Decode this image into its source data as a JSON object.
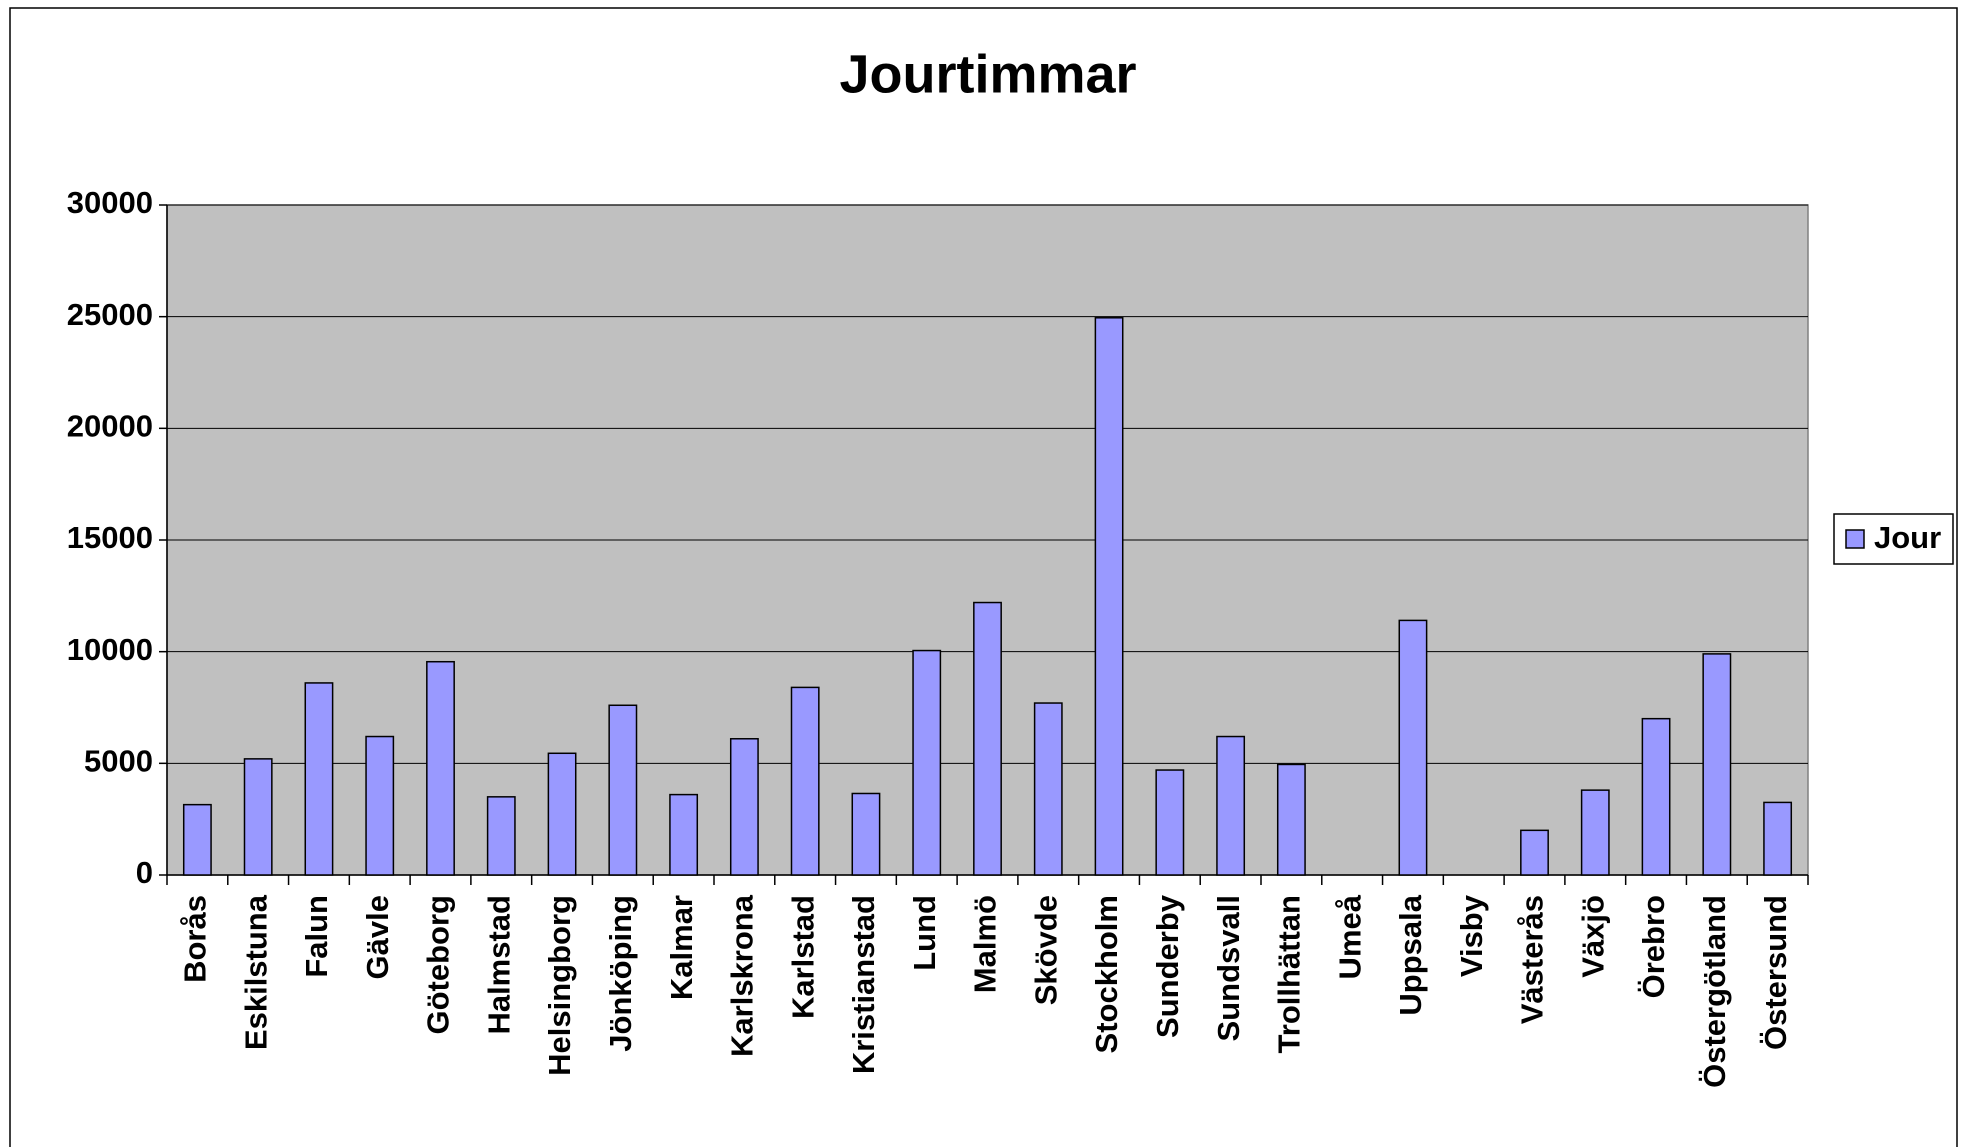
{
  "chart_data": {
    "type": "bar",
    "title": "Jourtimmar",
    "categories": [
      "Borås",
      "Eskilstuna",
      "Falun",
      "Gävle",
      "Göteborg",
      "Halmstad",
      "Helsingborg",
      "Jönköping",
      "Kalmar",
      "Karlskrona",
      "Karlstad",
      "Kristianstad",
      "Lund",
      "Malmö",
      "Skövde",
      "Stockholm",
      "Sunderby",
      "Sundsvall",
      "Trollhättan",
      "Umeå",
      "Uppsala",
      "Visby",
      "Västerås",
      "Växjö",
      "Örebro",
      "Östergötland",
      "Östersund"
    ],
    "series": [
      {
        "name": "Jour",
        "color": "#9999ff",
        "values": [
          3150,
          5200,
          8600,
          6200,
          9550,
          3500,
          5450,
          7600,
          3600,
          6100,
          8400,
          3650,
          10050,
          12200,
          7700,
          24950,
          4700,
          6200,
          4950,
          null,
          11400,
          null,
          2000,
          3800,
          7000,
          9900,
          3250
        ]
      }
    ],
    "ylim": [
      0,
      30000
    ],
    "yticks": [
      0,
      5000,
      10000,
      15000,
      20000,
      25000,
      30000
    ],
    "grid": true,
    "legend": "right"
  }
}
